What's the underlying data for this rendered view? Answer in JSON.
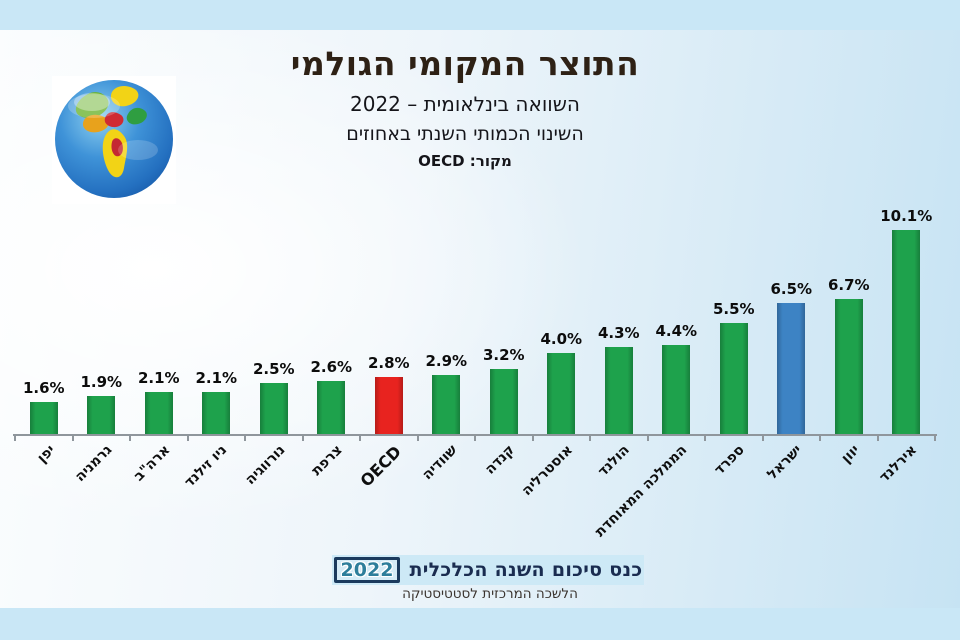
{
  "header": {
    "title": "התוצר המקומי הגולמי",
    "subtitle1": "השוואה בינלאומית – 2022",
    "subtitle2": "השינוי הכמותי השנתי באחוזים",
    "source": "מקור: OECD"
  },
  "decorations": {
    "globe_icon": "globe-earth"
  },
  "chart_data": {
    "type": "bar",
    "orientation": "vertical",
    "title": "התוצר המקומי הגולמי — השינוי הכמותי השנתי באחוזים, 2022",
    "unit": "%",
    "grid": false,
    "legend": "none",
    "ylim": [
      0,
      10.5
    ],
    "categories": [
      "יפן",
      "גרמניה",
      "ארה\"ב",
      "ניו זילנד",
      "נורווגיה",
      "צרפת",
      "OECD",
      "שוודיה",
      "קנדה",
      "אוסטרליה",
      "הולנד",
      "הממלכה המאוחדת",
      "ספרד",
      "ישראל",
      "יוון",
      "אירלנד"
    ],
    "values": [
      1.6,
      1.9,
      2.1,
      2.1,
      2.5,
      2.6,
      2.8,
      2.9,
      3.2,
      4.0,
      4.3,
      4.4,
      5.5,
      6.5,
      6.7,
      10.1
    ],
    "bar_labels": [
      "1.6%",
      "1.9%",
      "2.1%",
      "2.1%",
      "2.5%",
      "2.6%",
      "2.8%",
      "2.9%",
      "3.2%",
      "4.0%",
      "4.3%",
      "4.4%",
      "5.5%",
      "6.5%",
      "6.7%",
      "10.1%"
    ],
    "bar_colors": [
      "#1ea24c",
      "#1ea24c",
      "#1ea24c",
      "#1ea24c",
      "#1ea24c",
      "#1ea24c",
      "#e8231f",
      "#1ea24c",
      "#1ea24c",
      "#1ea24c",
      "#1ea24c",
      "#1ea24c",
      "#1ea24c",
      "#3d83c4",
      "#1ea24c",
      "#1ea24c"
    ],
    "color_legend": {
      "default_green": "#1ea24c",
      "oecd_red": "#e8231f",
      "israel_blue": "#3d83c4"
    }
  },
  "footer": {
    "banner_text": "כנס סיכום השנה הכלכלית",
    "banner_year": "2022",
    "credit": "הלשכה המרכזית לסטטיסטיקה"
  }
}
